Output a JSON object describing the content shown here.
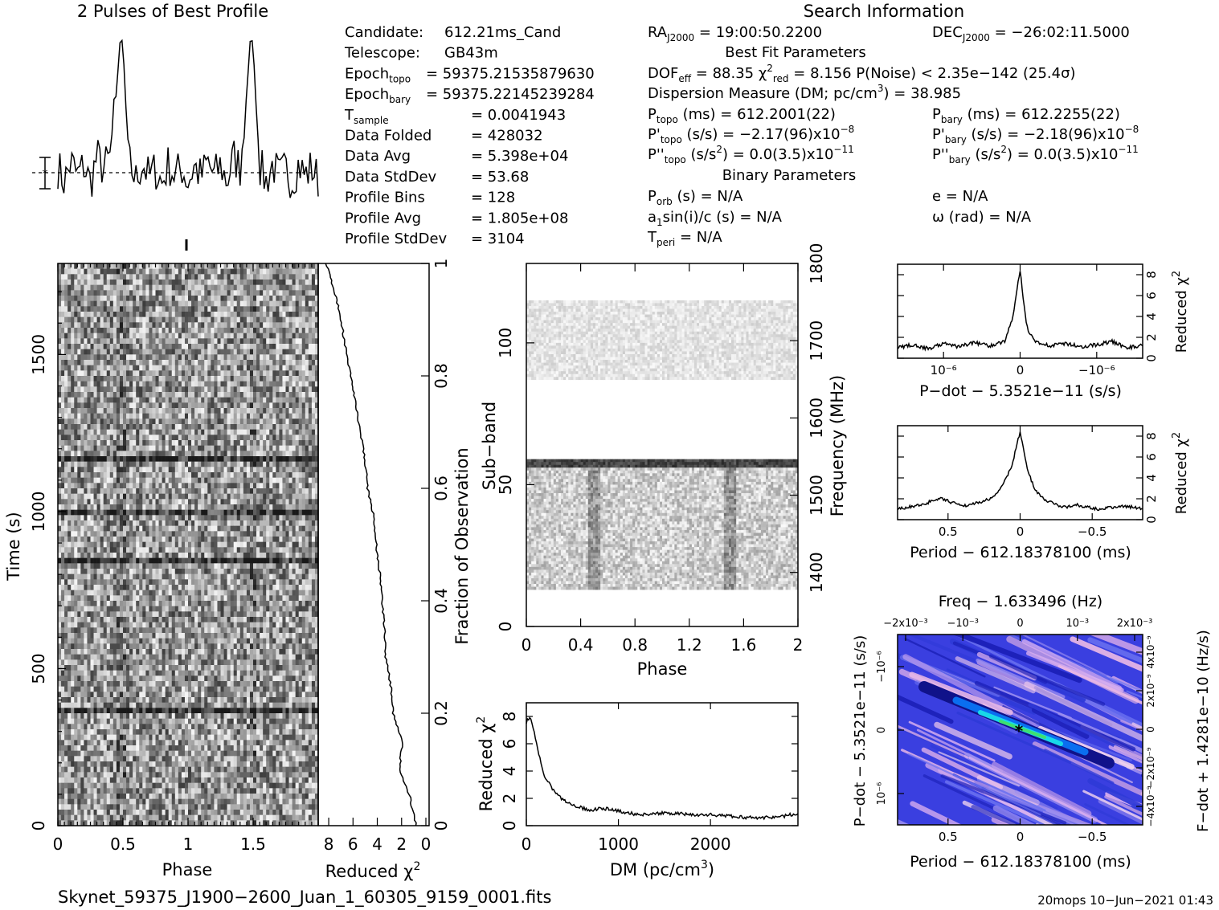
{
  "header": {
    "profile_title": "2 Pulses of Best Profile",
    "search_title": "Search Information",
    "best_fit_title": "Best Fit Parameters",
    "binary_title": "Binary Parameters"
  },
  "info_left": [
    {
      "label": "Candidate:",
      "value": "612.21ms_Cand"
    },
    {
      "label": "Telescope:",
      "value": "GB43m"
    },
    {
      "label": "Epoch_topo",
      "value": "= 59375.21535879630"
    },
    {
      "label": "Epoch_bary",
      "value": "= 59375.22145239284"
    },
    {
      "label": "T_sample",
      "value": "=    0.0041943"
    },
    {
      "label": "Data Folded",
      "value": "=    428032"
    },
    {
      "label": "Data Avg",
      "value": "=    5.398e+04"
    },
    {
      "label": "Data StdDev",
      "value": "=    53.68"
    },
    {
      "label": "Profile Bins",
      "value": "=    128"
    },
    {
      "label": "Profile Avg",
      "value": "=    1.805e+08"
    },
    {
      "label": "Profile StdDev",
      "value": "=    3104"
    }
  ],
  "info_right": {
    "ra": "RA_J2000 = 19:00:50.2200",
    "dec": "DEC_J2000 = −26:02:11.5000",
    "dof": "DOF_eff = 88.35   χ²_red = 8.156   P(Noise) < 2.35e−142   (25.4σ)",
    "dm": "Dispersion Measure (DM; pc/cm³) = 38.985",
    "p_topo": "P_topo (ms) =   612.2001(22)",
    "p_bary": "P_bary (ms) =   612.2255(22)",
    "pd_topo": "P'_topo (s/s) = −2.17(96)x10⁻⁸",
    "pd_bary": "P'_bary (s/s) = −2.18(96)x10⁻⁸",
    "pdd_topo": "P''_topo (s/s²) = 0.0(3.5)x10⁻¹¹",
    "pdd_bary": "P''_bary (s/s²) = 0.0(3.5)x10⁻¹¹",
    "porb": "P_orb (s) = N/A",
    "e": "e = N/A",
    "a1": "a₁sin(i)/c (s) = N/A",
    "omega": "ω (rad) = N/A",
    "tperi": "T_peri = N/A"
  },
  "footer": {
    "filename": "Skynet_59375_J1900−2600_Juan_1_60305_9159_0001.fits",
    "stamp": "20mops 10−Jun−2021 01:43"
  },
  "chart_data": [
    {
      "type": "line",
      "name": "profile",
      "title": "2 Pulses of Best Profile",
      "x": [
        0,
        0.05,
        0.1,
        0.15,
        0.2,
        0.25,
        0.3,
        0.35,
        0.4,
        0.45,
        0.48,
        0.5,
        0.52,
        0.55,
        0.6,
        0.65,
        0.7,
        0.75,
        0.8,
        0.85,
        0.9,
        0.95,
        1.0,
        1.05,
        1.1,
        1.15,
        1.2,
        1.25,
        1.3,
        1.35,
        1.4,
        1.45,
        1.48,
        1.5,
        1.52,
        1.55,
        1.6,
        1.65,
        1.7,
        1.75,
        1.8,
        1.85,
        1.9,
        1.95,
        2.0
      ],
      "values": [
        0.3,
        -0.5,
        0.6,
        -0.2,
        0.4,
        -0.6,
        0.9,
        0.2,
        0.8,
        4.5,
        7.5,
        7.2,
        4.0,
        0.5,
        -0.4,
        0.6,
        -0.3,
        0.2,
        -0.6,
        0.5,
        -0.2,
        0.3,
        -0.5,
        0.4,
        -0.3,
        0.6,
        -0.2,
        0.4,
        -0.5,
        0.9,
        0.3,
        4.3,
        7.6,
        7.1,
        4.1,
        0.4,
        -0.5,
        0.5,
        -0.3,
        0.2,
        -0.4,
        0.5,
        -0.2,
        0.3,
        -0.4
      ]
    },
    {
      "type": "heatmap",
      "name": "time-phase",
      "xlabel": "Phase",
      "ylabel": "Time (s)",
      "xticks": [
        "0",
        "0.5",
        "1",
        "1.5"
      ],
      "yticks": [
        "0",
        "500",
        "1000",
        "1500"
      ],
      "xlim": [
        0,
        2
      ],
      "ylim": [
        0,
        1790
      ],
      "dark_rows_time_s": [
        370,
        860,
        1000,
        1170
      ]
    },
    {
      "type": "line",
      "name": "time-chi2",
      "xlabel": "Reduced χ²",
      "ylabel": "Fraction of Observation",
      "xticks": [
        "8",
        "6",
        "4",
        "2",
        "0"
      ],
      "yticks": [
        "0",
        "0.2",
        "0.4",
        "0.6",
        "0.8",
        "1"
      ],
      "fraction": [
        0,
        0.05,
        0.1,
        0.15,
        0.2,
        0.25,
        0.3,
        0.35,
        0.4,
        0.45,
        0.5,
        0.55,
        0.6,
        0.65,
        0.7,
        0.75,
        0.8,
        0.85,
        0.9,
        0.95,
        1.0
      ],
      "chi2": [
        0.8,
        1.3,
        2.2,
        1.9,
        2.7,
        2.9,
        3.3,
        3.4,
        3.6,
        3.8,
        4.1,
        4.3,
        4.8,
        5.0,
        5.4,
        5.8,
        6.2,
        6.6,
        7.0,
        7.5,
        8.2
      ]
    },
    {
      "type": "heatmap",
      "name": "subband-phase",
      "xlabel": "Phase",
      "ylabel": "Sub-band",
      "y2label": "Frequency (MHz)",
      "xticks": [
        "0",
        "0.4",
        "0.8",
        "1.2",
        "1.6",
        "2"
      ],
      "yticks": [
        "0",
        "50",
        "100"
      ],
      "y2ticks": [
        "1400",
        "1500",
        "1600",
        "1700",
        "1800"
      ],
      "xlim": [
        0,
        2
      ],
      "ylim": [
        0,
        128
      ],
      "active_bands": [
        [
          14,
          59
        ],
        [
          88,
          115
        ]
      ]
    },
    {
      "type": "line",
      "name": "dm-chi2",
      "xlabel": "DM (pc/cm³)",
      "ylabel": "Reduced χ²",
      "xticks": [
        "0",
        "1000",
        "2000"
      ],
      "yticks": [
        "0",
        "2",
        "4",
        "6",
        "8"
      ],
      "xlim": [
        0,
        2950
      ],
      "ylim": [
        0,
        9
      ],
      "x": [
        0,
        40,
        100,
        150,
        200,
        300,
        400,
        500,
        600,
        700,
        800,
        900,
        1000,
        1200,
        1400,
        1600,
        1800,
        2000,
        2200,
        2400,
        2600,
        2800,
        2950
      ],
      "values": [
        7.6,
        8.0,
        6.4,
        4.8,
        3.6,
        2.5,
        1.9,
        1.5,
        1.3,
        1.1,
        1.3,
        1.2,
        1.1,
        0.8,
        0.9,
        0.9,
        0.8,
        0.8,
        0.7,
        0.6,
        0.6,
        0.7,
        0.9
      ]
    },
    {
      "type": "line",
      "name": "pdot-chi2",
      "xlabel": "P−dot − 5.3521e−11 (s/s)",
      "ylabel": "Reduced χ²",
      "xticks": [
        "10⁻⁶",
        "0",
        "−10⁻⁶"
      ],
      "yticks": [
        "0",
        "2",
        "4",
        "6",
        "8"
      ],
      "xlim": [
        1.6,
        -1.6
      ],
      "ylim": [
        0,
        9
      ],
      "x": [
        1.6,
        1.4,
        1.2,
        1.0,
        0.8,
        0.6,
        0.4,
        0.2,
        0.1,
        0.05,
        0.0,
        -0.05,
        -0.1,
        -0.2,
        -0.4,
        -0.6,
        -0.8,
        -1.0,
        -1.2,
        -1.4,
        -1.6
      ],
      "values": [
        1.0,
        1.3,
        0.9,
        1.4,
        1.1,
        1.5,
        1.2,
        1.6,
        3.8,
        6.2,
        8.4,
        5.0,
        2.6,
        1.6,
        1.2,
        1.4,
        1.1,
        1.3,
        1.6,
        1.0,
        1.2
      ]
    },
    {
      "type": "line",
      "name": "period-chi2",
      "xlabel": "Period − 612.18378100 (ms)",
      "ylabel": "Reduced χ²",
      "xticks": [
        "0.5",
        "0",
        "−0.5"
      ],
      "yticks": [
        "0",
        "2",
        "4",
        "6",
        "8"
      ],
      "xlim": [
        0.85,
        -0.85
      ],
      "ylim": [
        0,
        9
      ],
      "x": [
        0.85,
        0.7,
        0.55,
        0.4,
        0.3,
        0.2,
        0.15,
        0.1,
        0.05,
        0.02,
        0.0,
        -0.02,
        -0.05,
        -0.1,
        -0.15,
        -0.2,
        -0.3,
        -0.4,
        -0.55,
        -0.7,
        -0.85
      ],
      "values": [
        1.0,
        1.4,
        2.0,
        1.3,
        1.6,
        2.0,
        2.8,
        3.8,
        5.5,
        7.4,
        8.4,
        7.0,
        4.8,
        2.9,
        2.1,
        1.7,
        1.2,
        1.4,
        1.0,
        1.3,
        1.1
      ]
    },
    {
      "type": "heatmap",
      "name": "period-pdot",
      "title": "Freq − 1.633496 (Hz)",
      "xlabel": "Period − 612.18378100 (ms)",
      "ylabel": "P−dot − 5.3521e−11 (s/s)",
      "y2label": "F−dot + 1.4281e−10 (Hz/s)",
      "xticks": [
        "0.5",
        "0",
        "−0.5"
      ],
      "x2ticks": [
        "−2x10⁻³",
        "−10⁻³",
        "0",
        "10⁻³",
        "2x10⁻³"
      ],
      "yticks": [
        "−10⁻⁶",
        "0",
        "10⁻⁶"
      ],
      "y2ticks": [
        "4x10⁻⁹",
        "2x10⁻⁹",
        "0",
        "−2x10⁻⁹",
        "−4x10⁻⁹"
      ],
      "best_period": 0.0,
      "best_pdot": 0.0
    }
  ]
}
